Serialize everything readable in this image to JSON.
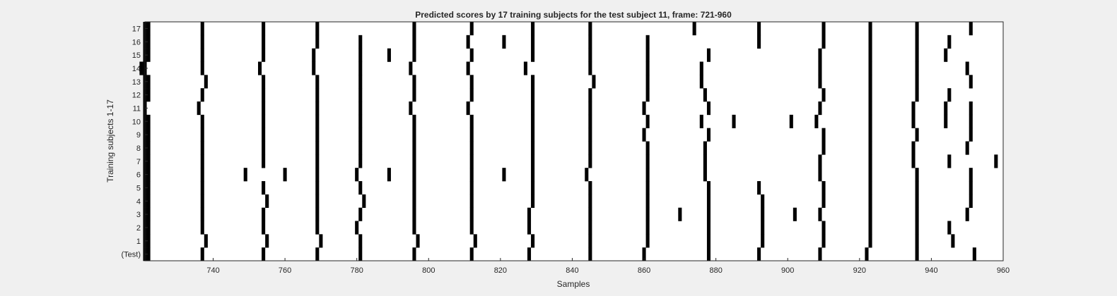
{
  "chart_data": {
    "type": "heatmap",
    "title": "Predicted scores by 17 training subjects for the test subject 11, frame: 721-960",
    "xlabel": "Samples",
    "ylabel": "Training subjects 1-17",
    "xlim": [
      721,
      960
    ],
    "x_ticks": [
      740,
      760,
      780,
      800,
      820,
      840,
      860,
      880,
      900,
      920,
      940,
      960
    ],
    "y_tick_labels": [
      "17",
      "16",
      "15",
      "14",
      "13",
      "12",
      "11",
      "10",
      "9",
      "8",
      "7",
      "6",
      "5",
      "4",
      "3",
      "2",
      "1",
      "(Test)"
    ],
    "background_color": "#ffffff",
    "mark_color": "#000000",
    "cell_width_samples": 1,
    "rows": [
      {
        "label": "17",
        "x": [
          721,
          722,
          737,
          754,
          769,
          796,
          812,
          829,
          845,
          874,
          892,
          910,
          923,
          936,
          951
        ]
      },
      {
        "label": "16",
        "x": [
          721,
          722,
          737,
          754,
          769,
          781,
          796,
          811,
          821,
          829,
          845,
          861,
          892,
          910,
          923,
          936,
          945
        ]
      },
      {
        "label": "15",
        "x": [
          721,
          722,
          737,
          754,
          768,
          781,
          789,
          796,
          812,
          829,
          845,
          861,
          878,
          909,
          923,
          936,
          944
        ]
      },
      {
        "label": "14",
        "x": [
          720,
          721,
          737,
          753,
          768,
          781,
          795,
          811,
          827,
          845,
          861,
          876,
          909,
          923,
          936,
          950
        ]
      },
      {
        "label": "13",
        "x": [
          721,
          722,
          738,
          754,
          769,
          781,
          796,
          812,
          829,
          846,
          861,
          876,
          909,
          923,
          936,
          951
        ]
      },
      {
        "label": "12",
        "x": [
          721,
          722,
          737,
          754,
          769,
          781,
          796,
          812,
          829,
          845,
          861,
          877,
          910,
          923,
          936,
          945
        ]
      },
      {
        "label": "11",
        "x": [
          721,
          736,
          754,
          769,
          781,
          795,
          811,
          829,
          845,
          860,
          878,
          909,
          923,
          935,
          944,
          951
        ]
      },
      {
        "label": "10",
        "x": [
          721,
          722,
          737,
          754,
          769,
          781,
          796,
          812,
          829,
          845,
          861,
          876,
          885,
          901,
          908,
          923,
          935,
          944,
          951
        ]
      },
      {
        "label": "9",
        "x": [
          721,
          722,
          737,
          754,
          769,
          781,
          796,
          812,
          829,
          845,
          860,
          878,
          910,
          923,
          936,
          951
        ]
      },
      {
        "label": "8",
        "x": [
          721,
          722,
          737,
          754,
          769,
          781,
          796,
          812,
          829,
          845,
          861,
          877,
          910,
          923,
          935,
          950
        ]
      },
      {
        "label": "7",
        "x": [
          721,
          722,
          737,
          754,
          769,
          781,
          796,
          812,
          829,
          845,
          861,
          877,
          909,
          923,
          935,
          945,
          958
        ]
      },
      {
        "label": "6",
        "x": [
          721,
          722,
          737,
          749,
          760,
          769,
          780,
          789,
          796,
          812,
          821,
          829,
          844,
          861,
          877,
          909,
          923,
          936,
          951
        ]
      },
      {
        "label": "5",
        "x": [
          721,
          722,
          737,
          754,
          769,
          781,
          796,
          812,
          829,
          845,
          861,
          878,
          892,
          910,
          923,
          936,
          951
        ]
      },
      {
        "label": "4",
        "x": [
          721,
          722,
          737,
          755,
          769,
          782,
          796,
          812,
          829,
          845,
          861,
          878,
          893,
          910,
          923,
          936,
          951
        ]
      },
      {
        "label": "3",
        "x": [
          721,
          722,
          737,
          754,
          769,
          781,
          796,
          812,
          828,
          845,
          861,
          870,
          878,
          893,
          902,
          909,
          923,
          936,
          950
        ]
      },
      {
        "label": "2",
        "x": [
          721,
          722,
          737,
          754,
          769,
          780,
          796,
          812,
          828,
          845,
          861,
          878,
          893,
          910,
          923,
          936,
          945
        ]
      },
      {
        "label": "1",
        "x": [
          721,
          722,
          738,
          755,
          770,
          781,
          797,
          813,
          829,
          845,
          861,
          878,
          893,
          910,
          923,
          936,
          946
        ]
      },
      {
        "label": "(Test)",
        "x": [
          721,
          722,
          737,
          754,
          769,
          781,
          796,
          812,
          828,
          845,
          860,
          878,
          892,
          909,
          922,
          936,
          952
        ]
      }
    ]
  }
}
